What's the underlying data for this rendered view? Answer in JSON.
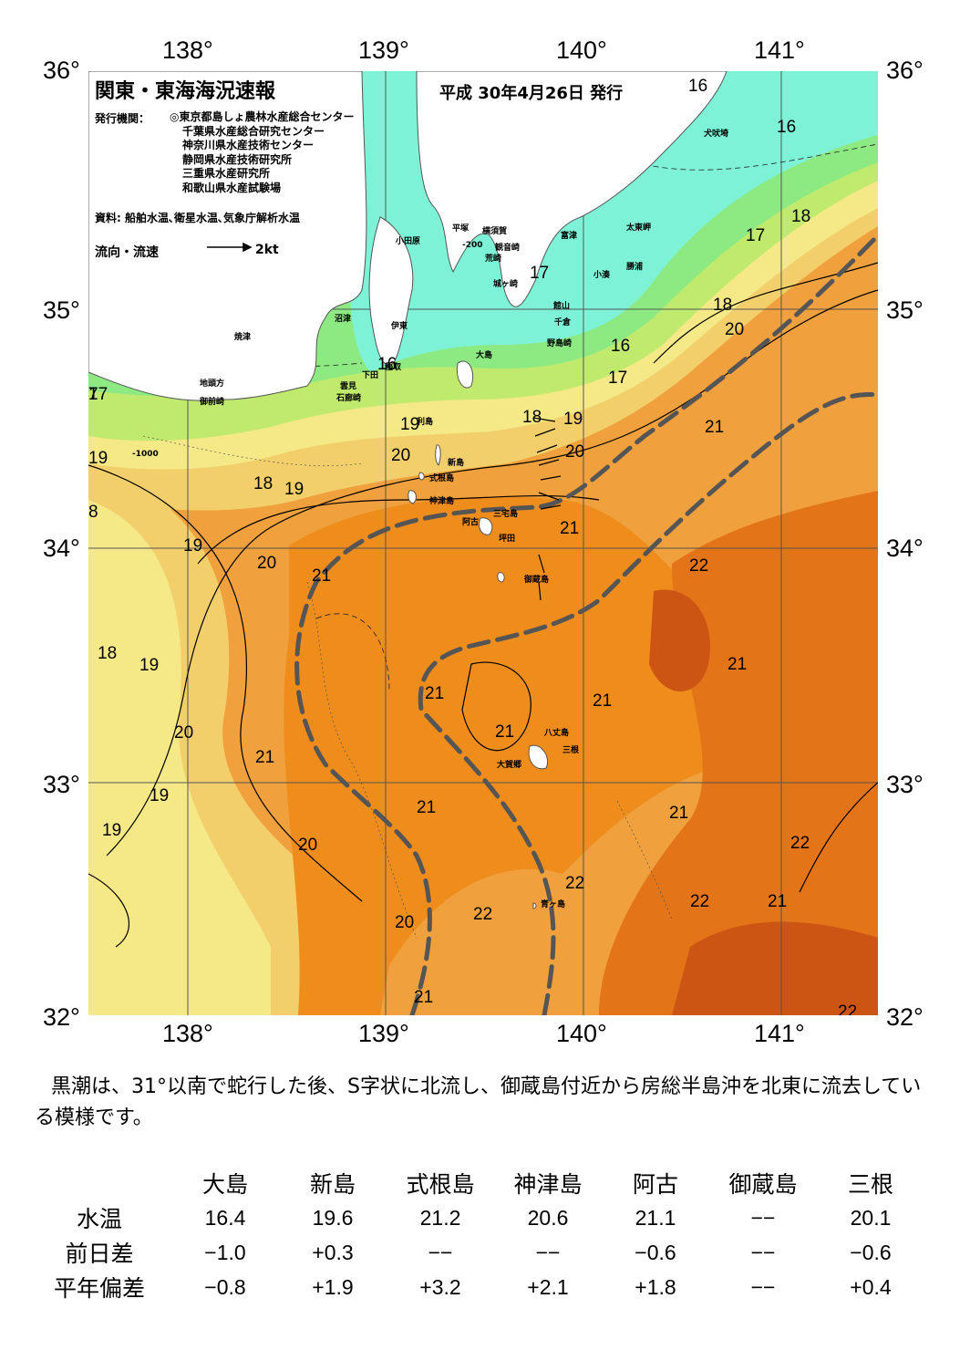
{
  "map": {
    "title": "関東・東海海況速報",
    "issued": "平成 30年4月26日 発行",
    "org_label": "発行機関：",
    "orgs": [
      "◎東京都島しょ農林水産総合センター",
      "千葉県水産総合研究センター",
      "神奈川県水産技術センター",
      "静岡県水産技術研究所",
      "三重県水産研究所",
      "和歌山県水産試験場"
    ],
    "source": "資料: 船舶水温､衛星水温､気象庁解析水温",
    "flow_label": "流向・流速",
    "flow_unit": "2kt",
    "lon_labels": [
      "138°",
      "139°",
      "140°",
      "141°"
    ],
    "lat_labels": [
      "36°",
      "35°",
      "34°",
      "33°",
      "32°"
    ],
    "place_names": [
      "小田原",
      "平塚",
      "横須賀",
      "観音崎",
      "富津",
      "荒崎",
      "城ヶ崎",
      "沼津",
      "伊東",
      "焼津",
      "稲取",
      "下田",
      "雲見",
      "石廊崎",
      "大島",
      "利島",
      "新島",
      "式根島",
      "神津島",
      "三宅島",
      "阿古",
      "坪田",
      "御蔵島",
      "八丈島",
      "三根",
      "大賀郷",
      "青ヶ島",
      "館山",
      "千倉",
      "野島崎",
      "小湊",
      "勝浦",
      "太東岬",
      "犬吠埼",
      "地頭方",
      "御前崎"
    ],
    "isotherm_labels": [
      "16",
      "16",
      "16",
      "16",
      "17",
      "17",
      "17",
      "17",
      "18",
      "18",
      "18",
      "18",
      "18",
      "19",
      "19",
      "19",
      "19",
      "19",
      "19",
      "19",
      "19",
      "20",
      "20",
      "20",
      "20",
      "20",
      "20",
      "20",
      "21",
      "21",
      "21",
      "21",
      "21",
      "21",
      "21",
      "21",
      "21",
      "21",
      "21",
      "21",
      "22",
      "22",
      "22",
      "22",
      "22",
      "22",
      "7",
      "8"
    ],
    "depth_labels": [
      "-200",
      "-1000"
    ],
    "colors": {
      "t16": "#7ef2d6",
      "t17": "#8dea82",
      "t18": "#c0ea6e",
      "t19": "#f5e886",
      "t20": "#f2cf6a",
      "t21": "#f0a03c",
      "t21b": "#ee8c1c",
      "t22": "#e47418",
      "t22b": "#cc5514",
      "kuroshio": "#555555",
      "land": "#ffffff"
    }
  },
  "description": "黒潮は、31°以南で蛇行した後、S字状に北流し、御蔵島付近から房総半島沖を北東に流去している模様です。",
  "table": {
    "columns": [
      "大島",
      "新島",
      "式根島",
      "神津島",
      "阿古",
      "御蔵島",
      "三根"
    ],
    "rows": [
      {
        "label": "水温",
        "values": [
          "16.4",
          "19.6",
          "21.2",
          "20.6",
          "21.1",
          "−−",
          "20.1"
        ]
      },
      {
        "label": "前日差",
        "values": [
          "−1.0",
          "+0.3",
          "−−",
          "−−",
          "−0.6",
          "−−",
          "−0.6"
        ]
      },
      {
        "label": "平年偏差",
        "values": [
          "−0.8",
          "+1.9",
          "+3.2",
          "+2.1",
          "+1.8",
          "−−",
          "+0.4"
        ]
      }
    ]
  }
}
